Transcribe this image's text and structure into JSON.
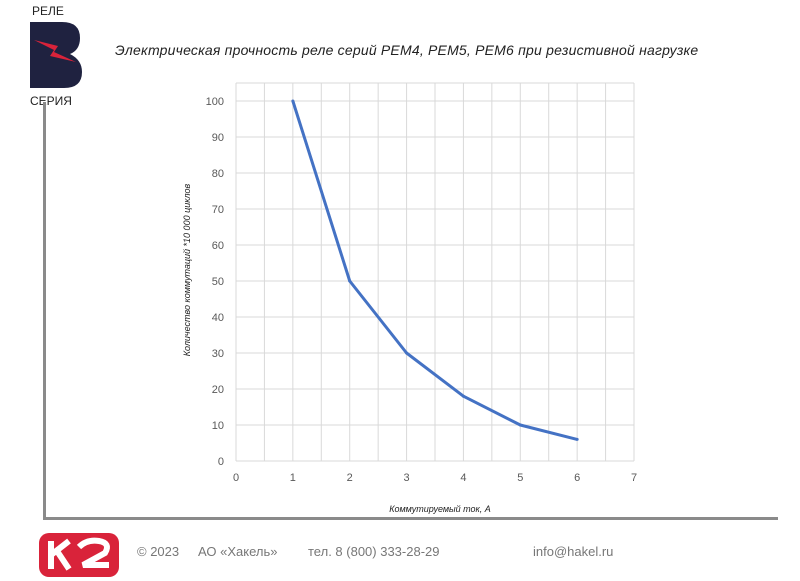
{
  "logo": {
    "top_text": "РЕЛЕ",
    "letter": "B",
    "bottom_text": "СЕРИЯ"
  },
  "footer": {
    "copyright": "© 2023",
    "company": "АО «Хакель»",
    "phone": "тел. 8 (800) 333-28-29",
    "email": "info@hakel.ru",
    "brand_logo": "K2"
  },
  "colors": {
    "line": "#4472c4",
    "grid": "#d9d9d9",
    "logo_dark": "#1f2240",
    "logo_red": "#d9233a"
  },
  "chart_data": {
    "type": "line",
    "title": "Электрическая прочность реле серий РЕМ4, РЕМ5, РЕМ6 при резистивной нагрузке",
    "xlabel": "Коммутируемый ток, А",
    "ylabel": "Количество коммутаций  *10 000 циклов",
    "xlim": [
      0,
      7
    ],
    "ylim": [
      0,
      100
    ],
    "xticks": [
      "0",
      "1",
      "2",
      "3",
      "4",
      "5",
      "6",
      "7"
    ],
    "yticks": [
      "0",
      "10",
      "20",
      "30",
      "40",
      "50",
      "60",
      "70",
      "80",
      "90",
      "100"
    ],
    "grid": true,
    "series": [
      {
        "x": [
          1,
          2,
          3,
          4,
          5,
          6
        ],
        "y": [
          100,
          50,
          30,
          18,
          10,
          6
        ]
      }
    ]
  }
}
